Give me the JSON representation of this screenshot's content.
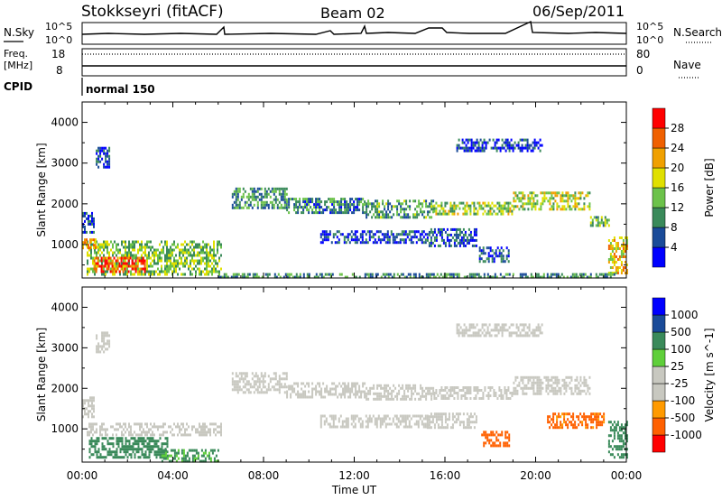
{
  "header": {
    "station": "Stokkseyri (fitACF)",
    "beam": "Beam 02",
    "date": "06/Sep/2011"
  },
  "top_panels": {
    "nsky_label": "N.Sky",
    "nsky_hi": "10^5",
    "nsky_lo": "10^0",
    "nsearch_label": "N.Search",
    "nsearch_hi": "10^5",
    "nsearch_lo": "10^0",
    "freq_label_1": "Freq.",
    "freq_label_2": "[MHz]",
    "freq_hi": "18",
    "freq_lo": "8",
    "nave_label": "Nave",
    "nave_hi": "80",
    "nave_lo": "0",
    "cpid_label": "CPID",
    "cpid_value": "normal 150"
  },
  "colors": {
    "power": [
      "#0000ff",
      "#1a4b99",
      "#3a8a5a",
      "#6cc24a",
      "#e0e000",
      "#f0a000",
      "#f06000",
      "#ff0000"
    ],
    "velocity": [
      "#ff0000",
      "#ff6000",
      "#ff9a00",
      "#c8c8c0",
      "#c8c8c0",
      "#5fcf3a",
      "#3a8a5a",
      "#1a4b99",
      "#0000ff"
    ]
  },
  "chart_data": [
    {
      "type": "heatmap",
      "title": "",
      "xlabel": "Time UT",
      "ylabel": "Slant Range [km]",
      "colorbar_label": "Power [dB]",
      "x_ticks": [
        "00:00",
        "04:00",
        "08:00",
        "12:00",
        "16:00",
        "20:00",
        "00:00"
      ],
      "y_ticks": [
        "1000",
        "2000",
        "3000",
        "4000"
      ],
      "ylim": [
        180,
        4500
      ],
      "xlim_hours": [
        0,
        24
      ],
      "colorbar_ticks": [
        "4",
        "8",
        "12",
        "16",
        "20",
        "24",
        "28"
      ],
      "colorbar_range": [
        0,
        32
      ],
      "regions": [
        {
          "t": [
            0.2,
            6.1
          ],
          "r": [
            250,
            1100
          ],
          "v": 14
        },
        {
          "t": [
            0.5,
            2.8
          ],
          "r": [
            350,
            700
          ],
          "v": 28
        },
        {
          "t": [
            0.0,
            0.6
          ],
          "r": [
            900,
            1150
          ],
          "v": 22
        },
        {
          "t": [
            0.0,
            0.5
          ],
          "r": [
            1300,
            1800
          ],
          "v": 6
        },
        {
          "t": [
            0.6,
            1.2
          ],
          "r": [
            2900,
            3400
          ],
          "v": 6
        },
        {
          "t": [
            6.6,
            9.0
          ],
          "r": [
            1900,
            2400
          ],
          "v": 10
        },
        {
          "t": [
            9.0,
            12.5
          ],
          "r": [
            1800,
            2150
          ],
          "v": 9
        },
        {
          "t": [
            12.5,
            15.5
          ],
          "r": [
            1700,
            2100
          ],
          "v": 11
        },
        {
          "t": [
            15.5,
            19.0
          ],
          "r": [
            1750,
            2050
          ],
          "v": 15
        },
        {
          "t": [
            19.0,
            22.4
          ],
          "r": [
            1850,
            2300
          ],
          "v": 17
        },
        {
          "t": [
            22.4,
            23.2
          ],
          "r": [
            1500,
            1700
          ],
          "v": 13
        },
        {
          "t": [
            10.5,
            15.2
          ],
          "r": [
            1050,
            1350
          ],
          "v": 5
        },
        {
          "t": [
            15.2,
            17.4
          ],
          "r": [
            1000,
            1400
          ],
          "v": 6
        },
        {
          "t": [
            17.5,
            18.8
          ],
          "r": [
            600,
            950
          ],
          "v": 6
        },
        {
          "t": [
            16.5,
            20.3
          ],
          "r": [
            3300,
            3600
          ],
          "v": 5
        },
        {
          "t": [
            23.2,
            24.0
          ],
          "r": [
            300,
            1200
          ],
          "v": 20
        },
        {
          "t": [
            6.0,
            23.5
          ],
          "r": [
            200,
            300
          ],
          "v": 10
        }
      ]
    },
    {
      "type": "heatmap",
      "title": "",
      "xlabel": "Time UT",
      "ylabel": "Slant Range [km]",
      "colorbar_label": "Velocity [m s^-1]",
      "x_ticks": [
        "00:00",
        "04:00",
        "08:00",
        "12:00",
        "16:00",
        "20:00",
        "00:00"
      ],
      "y_ticks": [
        "1000",
        "2000",
        "3000",
        "4000"
      ],
      "ylim": [
        180,
        4500
      ],
      "xlim_hours": [
        0,
        24
      ],
      "colorbar_ticks": [
        "1000",
        "500",
        "100",
        "25",
        "-25",
        "-100",
        "-500",
        "-1000"
      ],
      "colorbar_range": [
        -1000,
        1000
      ],
      "regions": [
        {
          "t": [
            0.2,
            6.1
          ],
          "r": [
            850,
            1150
          ],
          "v": 0
        },
        {
          "t": [
            0.3,
            3.8
          ],
          "r": [
            300,
            800
          ],
          "v": 300
        },
        {
          "t": [
            3.5,
            6.0
          ],
          "r": [
            200,
            500
          ],
          "v": 120
        },
        {
          "t": [
            0.0,
            0.5
          ],
          "r": [
            1300,
            1800
          ],
          "v": 0
        },
        {
          "t": [
            0.6,
            1.2
          ],
          "r": [
            2900,
            3400
          ],
          "v": 0
        },
        {
          "t": [
            6.6,
            9.0
          ],
          "r": [
            1900,
            2400
          ],
          "v": 0
        },
        {
          "t": [
            9.0,
            12.5
          ],
          "r": [
            1800,
            2150
          ],
          "v": 0
        },
        {
          "t": [
            12.5,
            15.5
          ],
          "r": [
            1700,
            2100
          ],
          "v": 0
        },
        {
          "t": [
            15.5,
            19.0
          ],
          "r": [
            1750,
            2050
          ],
          "v": 0
        },
        {
          "t": [
            19.0,
            22.4
          ],
          "r": [
            1850,
            2300
          ],
          "v": 0
        },
        {
          "t": [
            10.5,
            15.2
          ],
          "r": [
            1050,
            1350
          ],
          "v": 0
        },
        {
          "t": [
            15.2,
            17.4
          ],
          "r": [
            1000,
            1400
          ],
          "v": 0
        },
        {
          "t": [
            17.6,
            18.8
          ],
          "r": [
            600,
            950
          ],
          "v": -300
        },
        {
          "t": [
            16.5,
            20.3
          ],
          "r": [
            3300,
            3600
          ],
          "v": 0
        },
        {
          "t": [
            23.2,
            24.0
          ],
          "r": [
            300,
            1200
          ],
          "v": 200
        },
        {
          "t": [
            20.5,
            23.0
          ],
          "r": [
            1000,
            1400
          ],
          "v": -150
        }
      ]
    }
  ]
}
